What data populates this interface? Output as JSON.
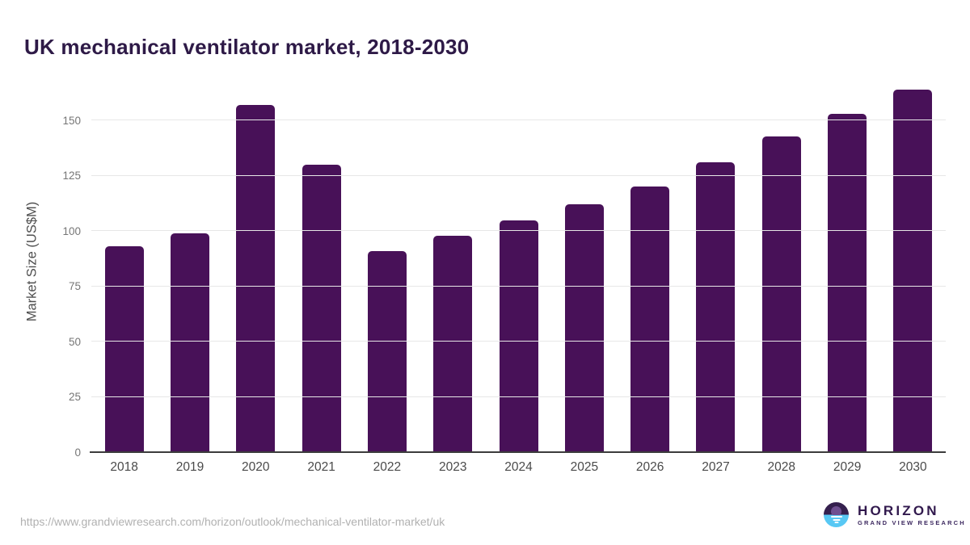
{
  "page": {
    "title": "UK mechanical ventilator market, 2018-2030"
  },
  "chart_data": {
    "type": "bar",
    "title": "UK mechanical ventilator market, 2018-2030",
    "categories": [
      "2018",
      "2019",
      "2020",
      "2021",
      "2022",
      "2023",
      "2024",
      "2025",
      "2026",
      "2027",
      "2028",
      "2029",
      "2030"
    ],
    "values": [
      93,
      99,
      157,
      130,
      91,
      98,
      105,
      112,
      120,
      131,
      143,
      153,
      164
    ],
    "xlabel": "",
    "ylabel": "Market Size (US$M)",
    "yticks": [
      0,
      25,
      50,
      75,
      100,
      125,
      150
    ],
    "ylim": [
      0,
      168
    ],
    "grid": true,
    "legend_position": "none",
    "bar_color": "#481158"
  },
  "footer": {
    "source_url": "https://www.grandviewresearch.com/horizon/outlook/mechanical-ventilator-market/uk",
    "logo": {
      "name": "HORIZON",
      "tagline": "GRAND VIEW RESEARCH"
    }
  },
  "colors": {
    "accent_purple": "#481158",
    "title_text": "#2e1a47",
    "axis_label_text": "#4a4a4a",
    "tick_text": "#767676",
    "gridline": "#e7e7e7",
    "axis_line": "#3c3c3c",
    "source_text": "#b1b1b1",
    "logo_dark_purple": "#35204e",
    "logo_light_blue": "#58c8f4"
  }
}
